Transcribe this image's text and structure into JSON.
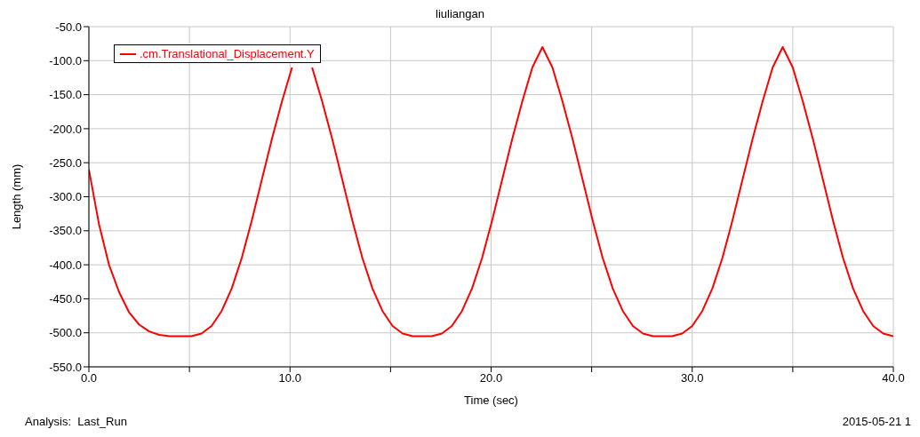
{
  "chart_data": {
    "type": "line",
    "title": "liuliangan",
    "xlabel": "Time (sec)",
    "ylabel": "Length (mm)",
    "annotations": [
      "Analysis:  Last_Run",
      "2015-05-21 1"
    ],
    "xlim": [
      0,
      40
    ],
    "ylim": [
      -550,
      -50
    ],
    "xticks": [
      {
        "value": 0,
        "label": "0.0"
      },
      {
        "value": 5,
        "label": null
      },
      {
        "value": 10,
        "label": "10.0"
      },
      {
        "value": 15,
        "label": null
      },
      {
        "value": 20,
        "label": "20.0"
      },
      {
        "value": 25,
        "label": null
      },
      {
        "value": 30,
        "label": "30.0"
      },
      {
        "value": 35,
        "label": null
      },
      {
        "value": 40,
        "label": "40.0"
      }
    ],
    "yticks": [
      {
        "value": -550,
        "label": "-550.0"
      },
      {
        "value": -500,
        "label": "-500.0"
      },
      {
        "value": -450,
        "label": "-450.0"
      },
      {
        "value": -400,
        "label": "-400.0"
      },
      {
        "value": -350,
        "label": "-350.0"
      },
      {
        "value": -300,
        "label": "-300.0"
      },
      {
        "value": -250,
        "label": "-250.0"
      },
      {
        "value": -200,
        "label": "-200.0"
      },
      {
        "value": -150,
        "label": "-150.0"
      },
      {
        "value": -100,
        "label": "-100.0"
      },
      {
        "value": -50,
        "label": "-50.0"
      }
    ],
    "grid": true,
    "legend": "top left",
    "marker": "none",
    "line_style": "solid",
    "x": [
      0,
      0.5,
      1,
      1.5,
      2,
      2.5,
      3,
      3.5,
      4,
      4.6,
      5.1,
      5.6,
      6.1,
      6.6,
      7.1,
      7.6,
      8.1,
      8.6,
      9.1,
      9.6,
      10.1,
      10.6,
      11.1,
      11.6,
      12.1,
      12.6,
      13.1,
      13.6,
      14.1,
      14.6,
      15.1,
      15.6,
      16.1,
      16.55,
      17.05,
      17.55,
      18.05,
      18.55,
      19.05,
      19.55,
      20.05,
      20.55,
      21.05,
      21.55,
      22.05,
      22.55,
      23.05,
      23.55,
      24.05,
      24.55,
      25.05,
      25.55,
      26.05,
      26.55,
      27.05,
      27.55,
      28.05,
      28.5,
      29,
      29.5,
      30,
      30.5,
      31,
      31.5,
      32,
      32.5,
      33,
      33.5,
      34,
      34.5,
      35,
      35.5,
      36,
      36.5,
      37,
      37.5,
      38,
      38.5,
      39,
      39.5,
      40
    ],
    "series": [
      {
        "name": ".cm.Translational_Displacement.Y",
        "color": "#ff0000",
        "values": [
          -260,
          -340,
          -400,
          -440,
          -470,
          -488,
          -498,
          -503,
          -505,
          -505,
          -505,
          -501,
          -490,
          -468,
          -435,
          -390,
          -335,
          -275,
          -215,
          -160,
          -110,
          null,
          -110,
          -160,
          -215,
          -275,
          -335,
          -390,
          -435,
          -468,
          -490,
          -501,
          -505,
          -505,
          -505,
          -501,
          -490,
          -468,
          -435,
          -390,
          -335,
          -275,
          -215,
          -160,
          -110,
          -80,
          -110,
          -160,
          -215,
          -275,
          -335,
          -390,
          -435,
          -468,
          -490,
          -501,
          -505,
          -505,
          -505,
          -501,
          -490,
          -468,
          -435,
          -390,
          -335,
          -275,
          -215,
          -160,
          -110,
          -80,
          -110,
          -160,
          -215,
          -275,
          -335,
          -390,
          -435,
          -468,
          -490,
          -501,
          -505
        ]
      }
    ]
  }
}
